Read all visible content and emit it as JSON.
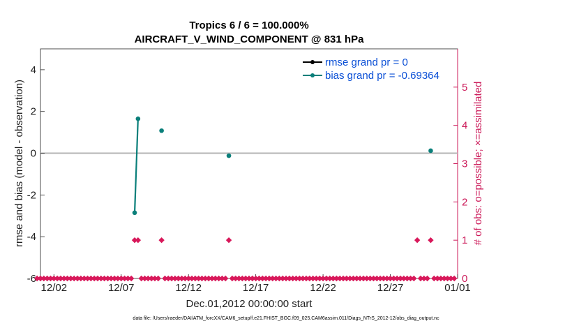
{
  "chart_data": {
    "type": "line",
    "title": "Tropics 6 / 6 = 100.000%",
    "subtitle": "AIRCRAFT_V_WIND_COMPONENT @ 831 hPa",
    "xlabel": "Dec.01,2012 00:00:00 start",
    "ylabel": "rmse and bias (model - observation)",
    "ylabel_right": "# of obs: o=possible; ×=assimilated",
    "xlim": [
      0,
      31
    ],
    "ylim": [
      -6,
      5
    ],
    "ylim_right": [
      0,
      6
    ],
    "x_ticks": [
      1,
      6,
      11,
      16,
      21,
      26,
      31
    ],
    "x_tick_labels": [
      "12/02",
      "12/07",
      "12/12",
      "12/17",
      "12/22",
      "12/27",
      "01/01"
    ],
    "y_ticks": [
      -6,
      -4,
      -2,
      0,
      2,
      4
    ],
    "y_tick_labels": [
      "-6",
      "-4",
      "-2",
      "0",
      "2",
      "4"
    ],
    "y_ticks_right": [
      0,
      1,
      2,
      3,
      4,
      5
    ],
    "y_tick_labels_right": [
      "0",
      "1",
      "2",
      "3",
      "4",
      "5"
    ],
    "zero_line": 0,
    "legend_position": "top-right",
    "series": [
      {
        "name": "rmse grand pr = 0",
        "color": "#000000",
        "marker": "circle",
        "x": [],
        "y": []
      },
      {
        "name": "bias grand pr = -0.69364",
        "color": "#0a7f7a",
        "marker": "circle",
        "segments": [
          {
            "x": [
              7.0,
              7.25
            ],
            "y": [
              -2.85,
              1.65
            ]
          },
          {
            "x": [
              9.0
            ],
            "y": [
              1.08
            ]
          },
          {
            "x": [
              14.0
            ],
            "y": [
              -0.12
            ]
          },
          {
            "x": [
              29.0
            ],
            "y": [
              0.12
            ]
          }
        ]
      },
      {
        "name": "obs count",
        "axis": "right",
        "color": "#d8185a",
        "marker": "diamond",
        "x": [
          -0.25,
          0.0,
          0.25,
          0.5,
          0.75,
          1.0,
          1.25,
          1.5,
          1.75,
          2.0,
          2.25,
          2.5,
          2.75,
          3.0,
          3.25,
          3.5,
          3.75,
          4.0,
          4.25,
          4.5,
          4.75,
          5.0,
          5.25,
          5.5,
          5.75,
          6.0,
          6.25,
          6.5,
          6.75,
          7.0,
          7.25,
          7.5,
          7.75,
          8.0,
          8.25,
          8.5,
          8.75,
          9.0,
          9.25,
          9.5,
          9.75,
          10.0,
          10.25,
          10.5,
          10.75,
          11.0,
          11.25,
          11.5,
          11.75,
          12.0,
          12.25,
          12.5,
          12.75,
          13.0,
          13.25,
          13.5,
          13.75,
          14.0,
          14.25,
          14.5,
          14.75,
          15.0,
          15.25,
          15.5,
          15.75,
          16.0,
          16.25,
          16.5,
          16.75,
          17.0,
          17.25,
          17.5,
          17.75,
          18.0,
          18.25,
          18.5,
          18.75,
          19.0,
          19.25,
          19.5,
          19.75,
          20.0,
          20.25,
          20.5,
          20.75,
          21.0,
          21.25,
          21.5,
          21.75,
          22.0,
          22.25,
          22.5,
          22.75,
          23.0,
          23.25,
          23.5,
          23.75,
          24.0,
          24.25,
          24.5,
          24.75,
          25.0,
          25.25,
          25.5,
          25.75,
          26.0,
          26.25,
          26.5,
          26.75,
          27.0,
          27.25,
          27.5,
          27.75,
          28.0,
          28.25,
          28.5,
          28.75,
          29.0,
          29.25,
          29.5,
          29.75,
          30.0,
          30.25,
          30.5,
          30.75
        ],
        "y": [
          0,
          0,
          0,
          0,
          0,
          0,
          0,
          0,
          0,
          0,
          0,
          0,
          0,
          0,
          0,
          0,
          0,
          0,
          0,
          0,
          0,
          0,
          0,
          0,
          0,
          0,
          0,
          0,
          0,
          1,
          1,
          0,
          0,
          0,
          0,
          0,
          0,
          1,
          0,
          0,
          0,
          0,
          0,
          0,
          0,
          0,
          0,
          0,
          0,
          0,
          0,
          0,
          0,
          0,
          0,
          0,
          0,
          1,
          0,
          0,
          0,
          0,
          0,
          0,
          0,
          0,
          0,
          0,
          0,
          0,
          0,
          0,
          0,
          0,
          0,
          0,
          0,
          0,
          0,
          0,
          0,
          0,
          0,
          0,
          0,
          0,
          0,
          0,
          0,
          0,
          0,
          0,
          0,
          0,
          0,
          0,
          0,
          0,
          0,
          0,
          0,
          0,
          0,
          0,
          0,
          0,
          0,
          0,
          0,
          0,
          0,
          0,
          0,
          1,
          0,
          0,
          0,
          1,
          0,
          0,
          0,
          0,
          0,
          0,
          0
        ]
      }
    ]
  },
  "footnote": "data file: /Users/raeder/DAI/ATM_forcXX/CAM6_setup/f.e21.FHIST_BGC.f09_025.CAM6assim.011/Diags_NTrS_2012-12/obs_diag_output.nc"
}
